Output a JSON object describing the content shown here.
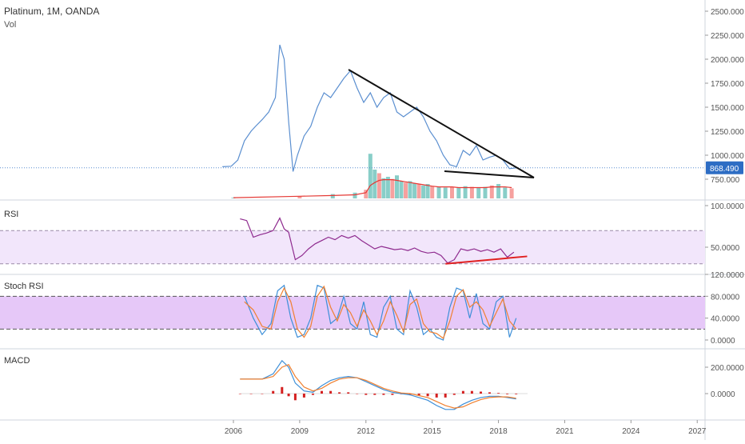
{
  "header": {
    "title": "Platinum, 1M, OANDA",
    "sub": "Vol"
  },
  "colors": {
    "price_line": "#5b8fd0",
    "rsi_line": "#8e2a8e",
    "rsi_band": "#f2e6fb",
    "stoch_band": "#e6c8f8",
    "stoch_k": "#3d8fd8",
    "stoch_d": "#f08030",
    "macd_line": "#3d8fd8",
    "macd_signal": "#f08030",
    "hist": "#d42020",
    "vol_up": "#26a69a",
    "vol_down": "#ef5350",
    "trend": "#111111",
    "rsi_trend": "#e02020",
    "price_badge": "#2d6dc4"
  },
  "time_axis": {
    "ticks": [
      {
        "label": "2006",
        "year": 2006
      },
      {
        "label": "2009",
        "year": 2009
      },
      {
        "label": "2012",
        "year": 2012
      },
      {
        "label": "2015",
        "year": 2015
      },
      {
        "label": "2018",
        "year": 2018
      },
      {
        "label": "2021",
        "year": 2021
      },
      {
        "label": "2024",
        "year": 2024
      },
      {
        "label": "2027",
        "year": 2027
      }
    ]
  },
  "chart_data": [
    {
      "type": "line",
      "name": "price",
      "title": "Platinum, 1M, OANDA",
      "current_value_label": "868.490",
      "current_value": 868.49,
      "ylim": [
        600,
        2600
      ],
      "yticks": [
        "750.000",
        "1000.000",
        "1250.000",
        "1500.000",
        "1750.000",
        "2000.000",
        "2250.000",
        "2500.000"
      ],
      "x": [
        2005.5,
        2005.9,
        2006.2,
        2006.5,
        2006.8,
        2007.0,
        2007.3,
        2007.6,
        2007.9,
        2008.1,
        2008.3,
        2008.5,
        2008.7,
        2008.9,
        2009.2,
        2009.5,
        2009.8,
        2010.1,
        2010.4,
        2010.7,
        2011.0,
        2011.3,
        2011.6,
        2011.9,
        2012.2,
        2012.5,
        2012.8,
        2013.1,
        2013.4,
        2013.7,
        2014.0,
        2014.3,
        2014.6,
        2014.9,
        2015.2,
        2015.5,
        2015.8,
        2016.1,
        2016.4,
        2016.7,
        2017.0,
        2017.3,
        2017.6,
        2017.9,
        2018.2,
        2018.5,
        2018.8
      ],
      "values": [
        880,
        885,
        950,
        1150,
        1250,
        1300,
        1370,
        1450,
        1600,
        2150,
        2000,
        1350,
        830,
        1000,
        1200,
        1300,
        1500,
        1650,
        1600,
        1700,
        1800,
        1880,
        1700,
        1550,
        1650,
        1500,
        1600,
        1650,
        1450,
        1400,
        1450,
        1500,
        1400,
        1250,
        1150,
        1000,
        900,
        880,
        1050,
        1000,
        1100,
        950,
        980,
        1000,
        950,
        860,
        868
      ]
    },
    {
      "type": "bar",
      "name": "volume",
      "title": "Vol",
      "x": [
        2006.0,
        2009.0,
        2010.5,
        2011.5,
        2012.0,
        2012.2,
        2012.4,
        2012.6,
        2012.8,
        2013.0,
        2013.2,
        2013.4,
        2013.6,
        2013.8,
        2014.0,
        2014.2,
        2014.4,
        2014.6,
        2014.8,
        2015.0,
        2015.3,
        2015.6,
        2015.9,
        2016.2,
        2016.5,
        2016.8,
        2017.1,
        2017.4,
        2017.7,
        2018.0,
        2018.3,
        2018.6
      ],
      "values": [
        1,
        3,
        6,
        8,
        12,
        62,
        40,
        35,
        28,
        30,
        27,
        32,
        24,
        22,
        24,
        21,
        20,
        18,
        20,
        17,
        16,
        15,
        16,
        15,
        17,
        16,
        15,
        16,
        18,
        20,
        15,
        14
      ],
      "ma_values": [
        1,
        3,
        4,
        5,
        8,
        18,
        22,
        25,
        26,
        26,
        26,
        25,
        24,
        23,
        22,
        21,
        20,
        19,
        18,
        17,
        16,
        16,
        16,
        15,
        15,
        15,
        15,
        15,
        16,
        16,
        16,
        15
      ],
      "ylim": [
        0,
        100
      ]
    },
    {
      "type": "line",
      "name": "rsi",
      "title": "RSI",
      "ylim": [
        25,
        100
      ],
      "yticks": [
        "50.0000",
        "100.0000"
      ],
      "band": [
        30,
        70
      ],
      "x": [
        2006.3,
        2006.6,
        2006.9,
        2007.2,
        2007.5,
        2007.8,
        2008.1,
        2008.3,
        2008.5,
        2008.8,
        2009.1,
        2009.4,
        2009.7,
        2010.0,
        2010.3,
        2010.6,
        2010.9,
        2011.2,
        2011.5,
        2011.8,
        2012.1,
        2012.4,
        2012.7,
        2013.0,
        2013.3,
        2013.6,
        2013.9,
        2014.2,
        2014.5,
        2014.8,
        2015.1,
        2015.4,
        2015.7,
        2016.0,
        2016.3,
        2016.6,
        2016.9,
        2017.2,
        2017.5,
        2017.8,
        2018.1,
        2018.4,
        2018.7
      ],
      "values": [
        84,
        82,
        62,
        65,
        67,
        70,
        85,
        72,
        68,
        35,
        40,
        48,
        54,
        58,
        62,
        59,
        64,
        61,
        64,
        58,
        53,
        48,
        51,
        49,
        47,
        48,
        46,
        49,
        45,
        43,
        44,
        40,
        31,
        35,
        48,
        46,
        48,
        45,
        47,
        44,
        48,
        38,
        44
      ],
      "trend_line": {
        "x": [
          2015.6,
          2019.3
        ],
        "y": [
          30,
          39
        ]
      }
    },
    {
      "type": "line",
      "name": "stoch_rsi",
      "title": "Stoch RSI",
      "ylim": [
        -10,
        130
      ],
      "yticks": [
        "0.0000",
        "40.0000",
        "80.0000",
        "120.0000"
      ],
      "band": [
        20,
        80
      ],
      "x": [
        2006.5,
        2006.9,
        2007.3,
        2007.7,
        2008.0,
        2008.3,
        2008.6,
        2008.9,
        2009.2,
        2009.5,
        2009.8,
        2010.1,
        2010.4,
        2010.7,
        2011.0,
        2011.3,
        2011.6,
        2011.9,
        2012.2,
        2012.5,
        2012.8,
        2013.1,
        2013.4,
        2013.7,
        2014.0,
        2014.3,
        2014.6,
        2014.9,
        2015.2,
        2015.5,
        2015.8,
        2016.1,
        2016.4,
        2016.7,
        2017.0,
        2017.3,
        2017.6,
        2017.9,
        2018.2,
        2018.5,
        2018.8
      ],
      "k_values": [
        80,
        40,
        10,
        30,
        90,
        100,
        40,
        5,
        10,
        40,
        100,
        95,
        30,
        40,
        80,
        30,
        20,
        70,
        10,
        5,
        60,
        80,
        20,
        10,
        90,
        60,
        10,
        20,
        5,
        0,
        60,
        95,
        90,
        40,
        85,
        30,
        20,
        70,
        80,
        5,
        40
      ],
      "d_values": [
        70,
        55,
        25,
        20,
        70,
        95,
        70,
        20,
        5,
        25,
        80,
        98,
        60,
        35,
        65,
        50,
        25,
        55,
        35,
        10,
        35,
        70,
        45,
        15,
        65,
        75,
        30,
        15,
        12,
        3,
        35,
        80,
        92,
        60,
        70,
        55,
        25,
        50,
        75,
        35,
        20
      ]
    },
    {
      "type": "line",
      "name": "macd",
      "title": "MACD",
      "ylim": [
        -200,
        300
      ],
      "yticks": [
        "0.0000",
        "200.0000"
      ],
      "x": [
        2006.3,
        2006.8,
        2007.3,
        2007.8,
        2008.2,
        2008.5,
        2008.8,
        2009.2,
        2009.6,
        2010.0,
        2010.4,
        2010.8,
        2011.2,
        2011.6,
        2012.0,
        2012.4,
        2012.8,
        2013.2,
        2013.6,
        2014.0,
        2014.4,
        2014.8,
        2015.2,
        2015.6,
        2016.0,
        2016.4,
        2016.8,
        2017.2,
        2017.6,
        2018.0,
        2018.4,
        2018.8
      ],
      "macd_values": [
        110,
        110,
        110,
        150,
        250,
        200,
        80,
        20,
        10,
        60,
        100,
        120,
        130,
        120,
        90,
        60,
        30,
        10,
        0,
        -10,
        -30,
        -50,
        -90,
        -120,
        -120,
        -80,
        -50,
        -30,
        -20,
        -20,
        -30,
        -40
      ],
      "signal_values": [
        110,
        110,
        110,
        130,
        200,
        220,
        130,
        50,
        20,
        40,
        80,
        110,
        120,
        120,
        100,
        70,
        40,
        20,
        5,
        0,
        -15,
        -30,
        -60,
        -90,
        -110,
        -100,
        -70,
        -45,
        -30,
        -25,
        -25,
        -35
      ],
      "hist_values": [
        0,
        0,
        0,
        20,
        50,
        -20,
        -50,
        -30,
        -10,
        20,
        20,
        10,
        10,
        0,
        -10,
        -10,
        -10,
        -10,
        -5,
        -10,
        -15,
        -20,
        -30,
        -30,
        -10,
        20,
        20,
        15,
        10,
        5,
        -5,
        -5
      ]
    }
  ]
}
